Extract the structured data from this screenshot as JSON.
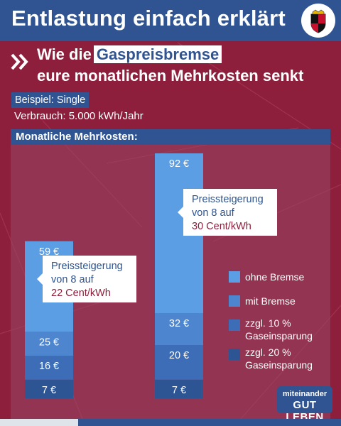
{
  "header": {
    "title": "Entlastung einfach erklärt",
    "crest_icon": "rheinland-pfalz-crest-icon"
  },
  "headline": {
    "prefix": "Wie die",
    "highlight": "Gaspreisbremse",
    "line2": "eure monatlichen Mehrkosten senkt"
  },
  "example": {
    "label": "Beispiel: Single",
    "usage": "Verbrauch: 5.000 kWh/Jahr"
  },
  "section": {
    "title": "Monatliche Mehrkosten:"
  },
  "bars": [
    {
      "values": {
        "ohne_bremse": 59,
        "mit_bremse": 25,
        "gaseinsparung_10": 16,
        "gaseinsparung_20": 7
      },
      "labels": [
        "59 €",
        "25 €",
        "16 €",
        "7 €"
      ],
      "callout": {
        "line1": "Preissteigerung",
        "line2": "von 8 auf",
        "line3": "22 Cent/kWh"
      }
    },
    {
      "values": {
        "ohne_bremse": 92,
        "mit_bremse": 32,
        "gaseinsparung_10": 20,
        "gaseinsparung_20": 7
      },
      "labels": [
        "92 €",
        "32 €",
        "20 €",
        "7 €"
      ],
      "callout": {
        "line1": "Preissteigerung",
        "line2": "von 8 auf",
        "line3": "30 Cent/kWh"
      }
    }
  ],
  "legend": [
    {
      "label": "ohne Bremse",
      "color": "#5b9ee4"
    },
    {
      "label": "mit Bremse",
      "color": "#4d86cf"
    },
    {
      "label_line1": "zzgl. 10 %",
      "label_line2": "Gaseinsparung",
      "color": "#3c6db6"
    },
    {
      "label_line1": "zzgl. 20 %",
      "label_line2": "Gaseinsparung",
      "color": "#2e5593"
    }
  ],
  "logo": {
    "line1": "miteinander",
    "line2": "GUT LEBEN"
  },
  "colors": {
    "background": "#8e1f3c",
    "blue": "#2f5491",
    "accent_red": "#8e1f3c"
  }
}
